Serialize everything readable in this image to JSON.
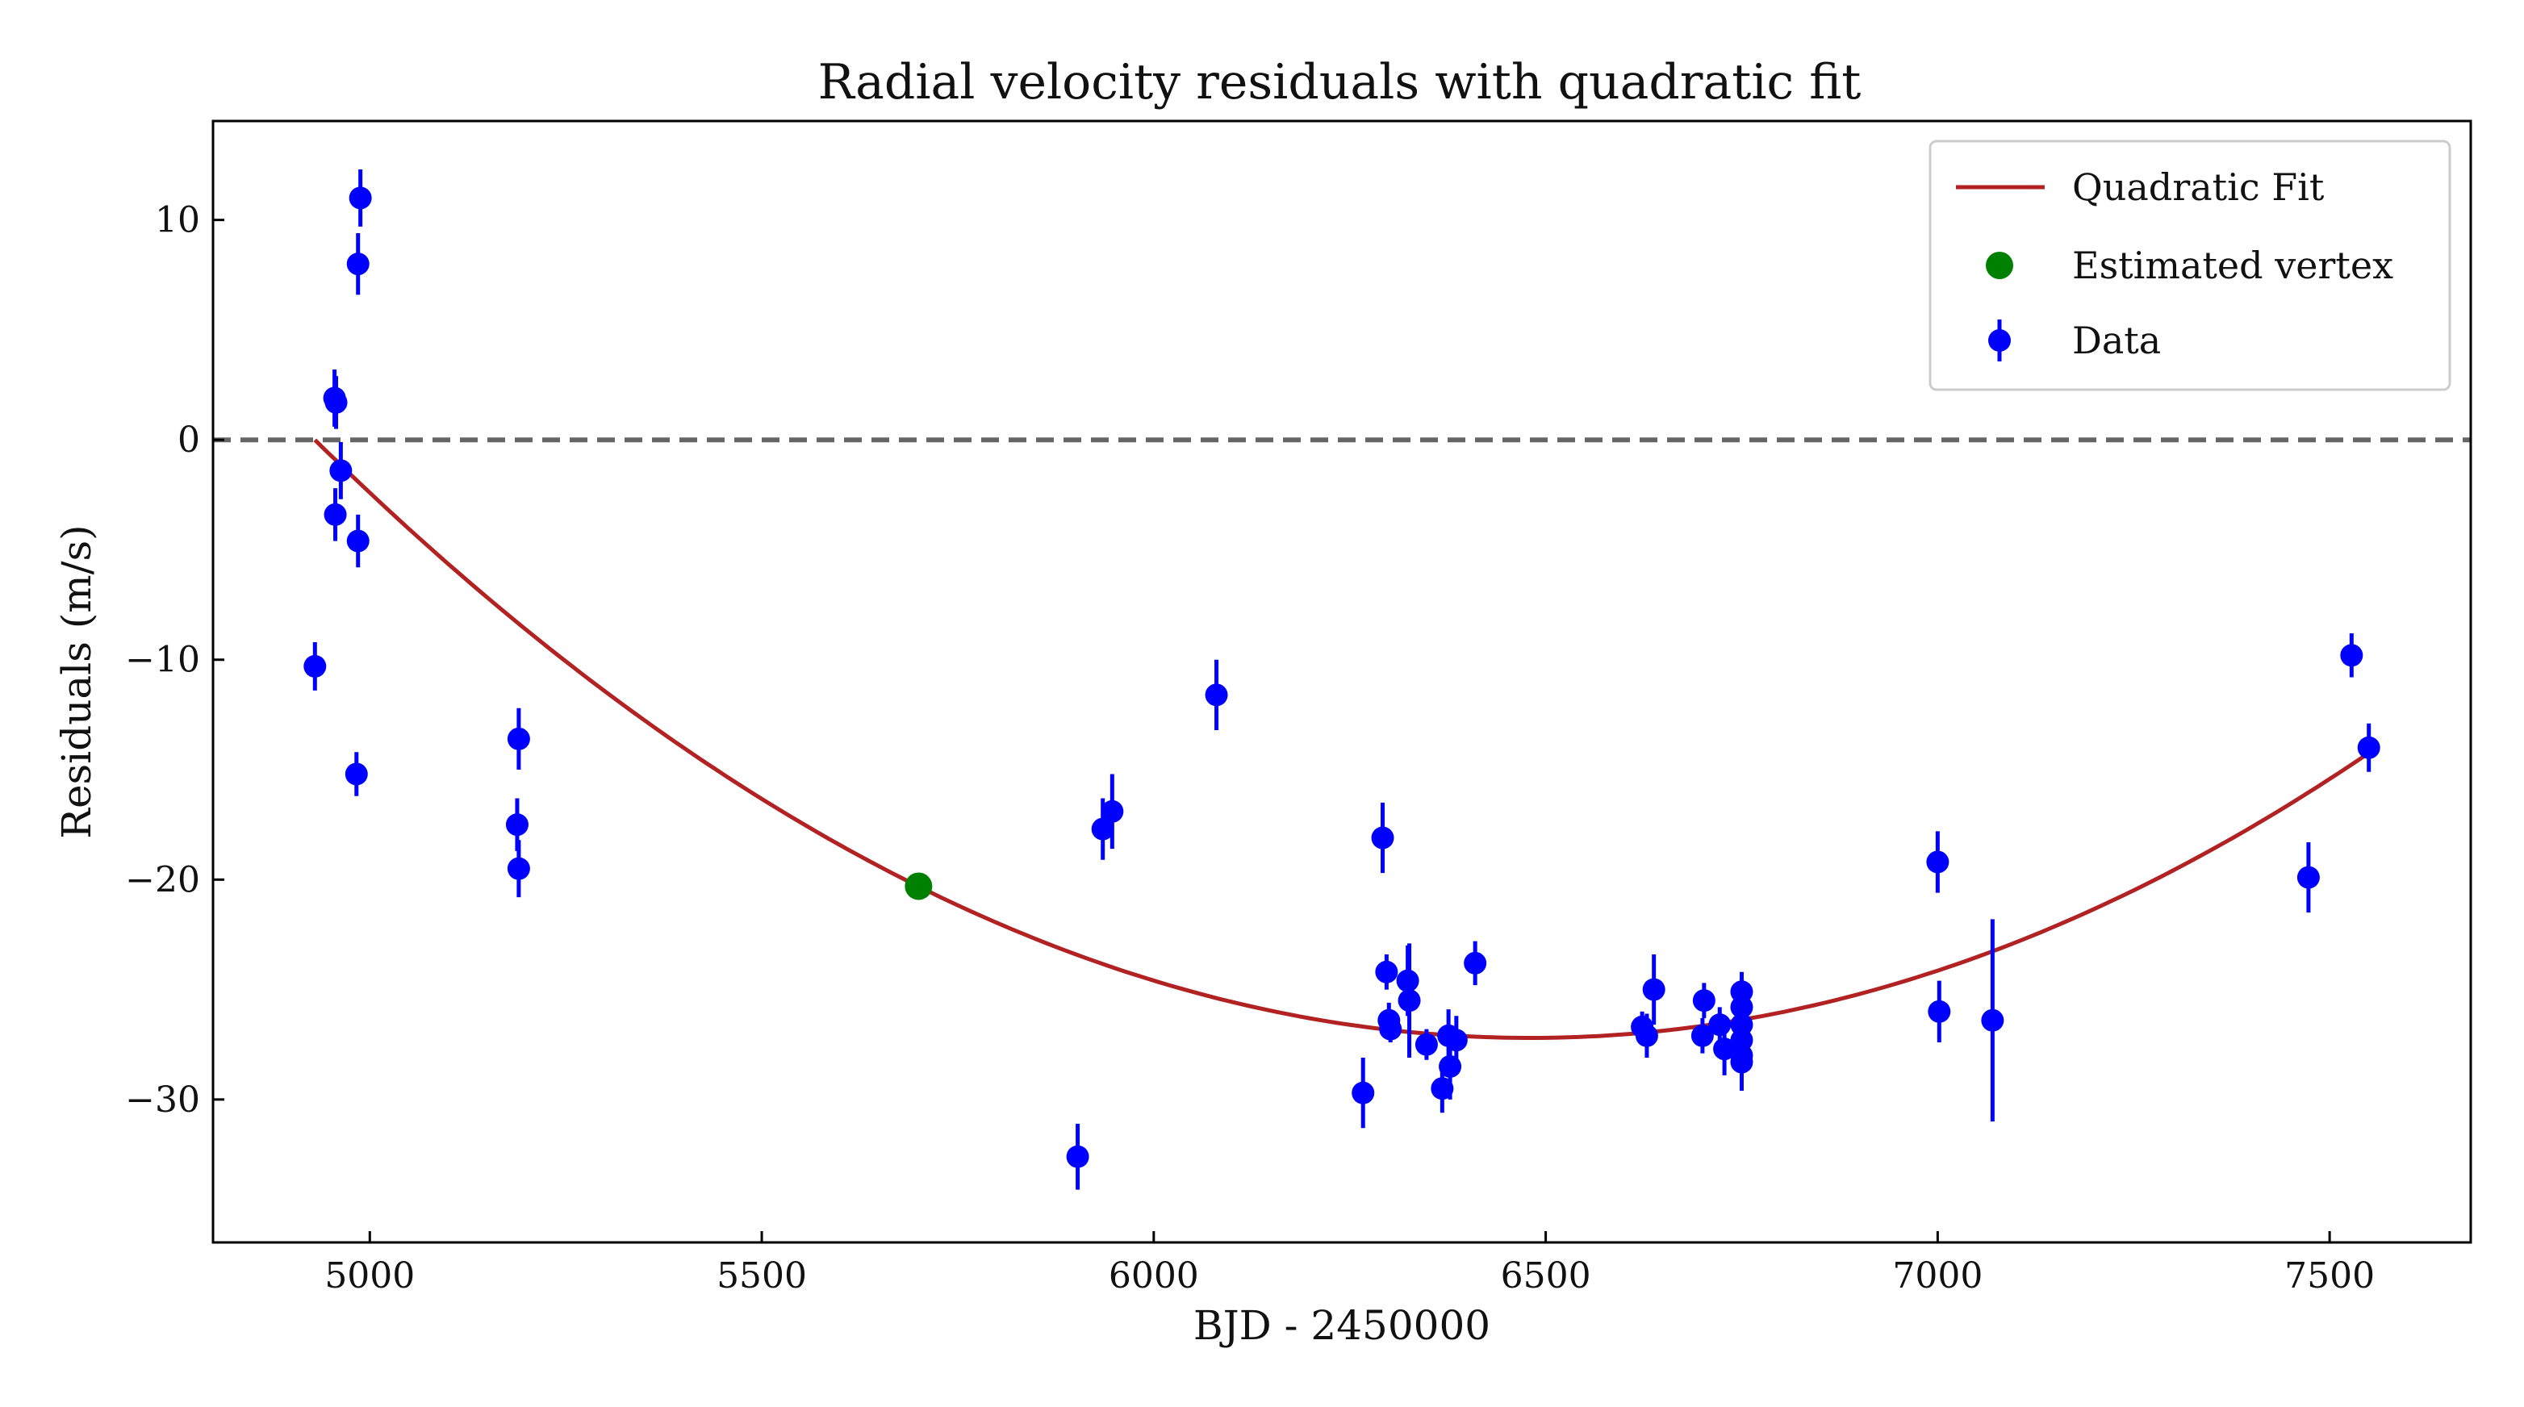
{
  "chart_data": {
    "type": "scatter",
    "title": "Radial velocity residuals with quadratic fit",
    "xlabel": "BJD - 2450000",
    "ylabel": "Residuals (m/s)",
    "xlim": [
      4800,
      7680
    ],
    "ylim": [
      -36.5,
      14.5
    ],
    "xticks": [
      5000,
      5500,
      6000,
      6500,
      7000,
      7500
    ],
    "yticks": [
      10,
      0,
      -10,
      -20,
      -30
    ],
    "ytick_labels": [
      "10",
      "0",
      "−10",
      "−20",
      "−30"
    ],
    "reference_line": {
      "y": 0,
      "style": "dashed",
      "color": "#666666"
    },
    "legend": {
      "position": "top-right",
      "entries": [
        "Quadratic Fit",
        "Estimated vertex",
        "Data"
      ]
    },
    "series": [
      {
        "name": "Data",
        "kind": "errorbar",
        "color": "#0000ff",
        "points": [
          {
            "x": 4930,
            "y": -10.3,
            "err": 1.1
          },
          {
            "x": 4955,
            "y": 1.9,
            "err": 1.3
          },
          {
            "x": 4957,
            "y": 1.7,
            "err": 1.2
          },
          {
            "x": 4956,
            "y": -3.4,
            "err": 1.2
          },
          {
            "x": 4963,
            "y": -1.4,
            "err": 1.3
          },
          {
            "x": 4983,
            "y": -15.2,
            "err": 1.0
          },
          {
            "x": 4985,
            "y": 8.0,
            "err": 1.4
          },
          {
            "x": 4988,
            "y": 11.0,
            "err": 1.3
          },
          {
            "x": 4985,
            "y": -4.6,
            "err": 1.2
          },
          {
            "x": 5190,
            "y": -13.6,
            "err": 1.4
          },
          {
            "x": 5188,
            "y": -17.5,
            "err": 1.2
          },
          {
            "x": 5190,
            "y": -19.5,
            "err": 1.3
          },
          {
            "x": 5903,
            "y": -32.6,
            "err": 1.5
          },
          {
            "x": 5935,
            "y": -17.7,
            "err": 1.4
          },
          {
            "x": 5947,
            "y": -16.9,
            "err": 1.7
          },
          {
            "x": 6080,
            "y": -11.6,
            "err": 1.6
          },
          {
            "x": 6267,
            "y": -29.7,
            "err": 1.6
          },
          {
            "x": 6292,
            "y": -18.1,
            "err": 1.6
          },
          {
            "x": 6297,
            "y": -24.2,
            "err": 0.8
          },
          {
            "x": 6300,
            "y": -26.4,
            "err": 0.8
          },
          {
            "x": 6302,
            "y": -26.8,
            "err": 0.6
          },
          {
            "x": 6324,
            "y": -24.6,
            "err": 1.6
          },
          {
            "x": 6326,
            "y": -25.5,
            "err": 2.6
          },
          {
            "x": 6348,
            "y": -27.5,
            "err": 0.7
          },
          {
            "x": 6368,
            "y": -29.5,
            "err": 1.1
          },
          {
            "x": 6378,
            "y": -28.5,
            "err": 1.5
          },
          {
            "x": 6376,
            "y": -27.1,
            "err": 1.2
          },
          {
            "x": 6386,
            "y": -27.3,
            "err": 1.1
          },
          {
            "x": 6410,
            "y": -23.8,
            "err": 1.0
          },
          {
            "x": 6623,
            "y": -26.7,
            "err": 0.7
          },
          {
            "x": 6629,
            "y": -27.1,
            "err": 1.0
          },
          {
            "x": 6638,
            "y": -25.0,
            "err": 1.6
          },
          {
            "x": 6700,
            "y": -27.1,
            "err": 0.8
          },
          {
            "x": 6702,
            "y": -25.5,
            "err": 0.8
          },
          {
            "x": 6722,
            "y": -26.6,
            "err": 0.8
          },
          {
            "x": 6728,
            "y": -27.7,
            "err": 1.2
          },
          {
            "x": 6750,
            "y": -25.1,
            "err": 0.9
          },
          {
            "x": 6750,
            "y": -25.8,
            "err": 0.8
          },
          {
            "x": 6750,
            "y": -26.6,
            "err": 0.8
          },
          {
            "x": 6750,
            "y": -27.3,
            "err": 0.8
          },
          {
            "x": 6750,
            "y": -28.0,
            "err": 0.9
          },
          {
            "x": 6750,
            "y": -28.3,
            "err": 1.3
          },
          {
            "x": 7000,
            "y": -19.2,
            "err": 1.4
          },
          {
            "x": 7002,
            "y": -26.0,
            "err": 1.4
          },
          {
            "x": 7070,
            "y": -26.4,
            "err": 4.6
          },
          {
            "x": 7473,
            "y": -19.9,
            "err": 1.6
          },
          {
            "x": 7528,
            "y": -9.8,
            "err": 1.0
          },
          {
            "x": 7550,
            "y": -14.0,
            "err": 1.1
          }
        ]
      },
      {
        "name": "Quadratic Fit",
        "kind": "curve",
        "color": "#b22222",
        "x_range": [
          4930,
          7550
        ],
        "vertex": {
          "x": 6480,
          "y": -27.2
        },
        "curvature": 1.132e-05
      },
      {
        "name": "Estimated vertex",
        "kind": "point",
        "color": "#008000",
        "points": [
          {
            "x": 5700,
            "y": -20.3
          }
        ]
      }
    ]
  }
}
